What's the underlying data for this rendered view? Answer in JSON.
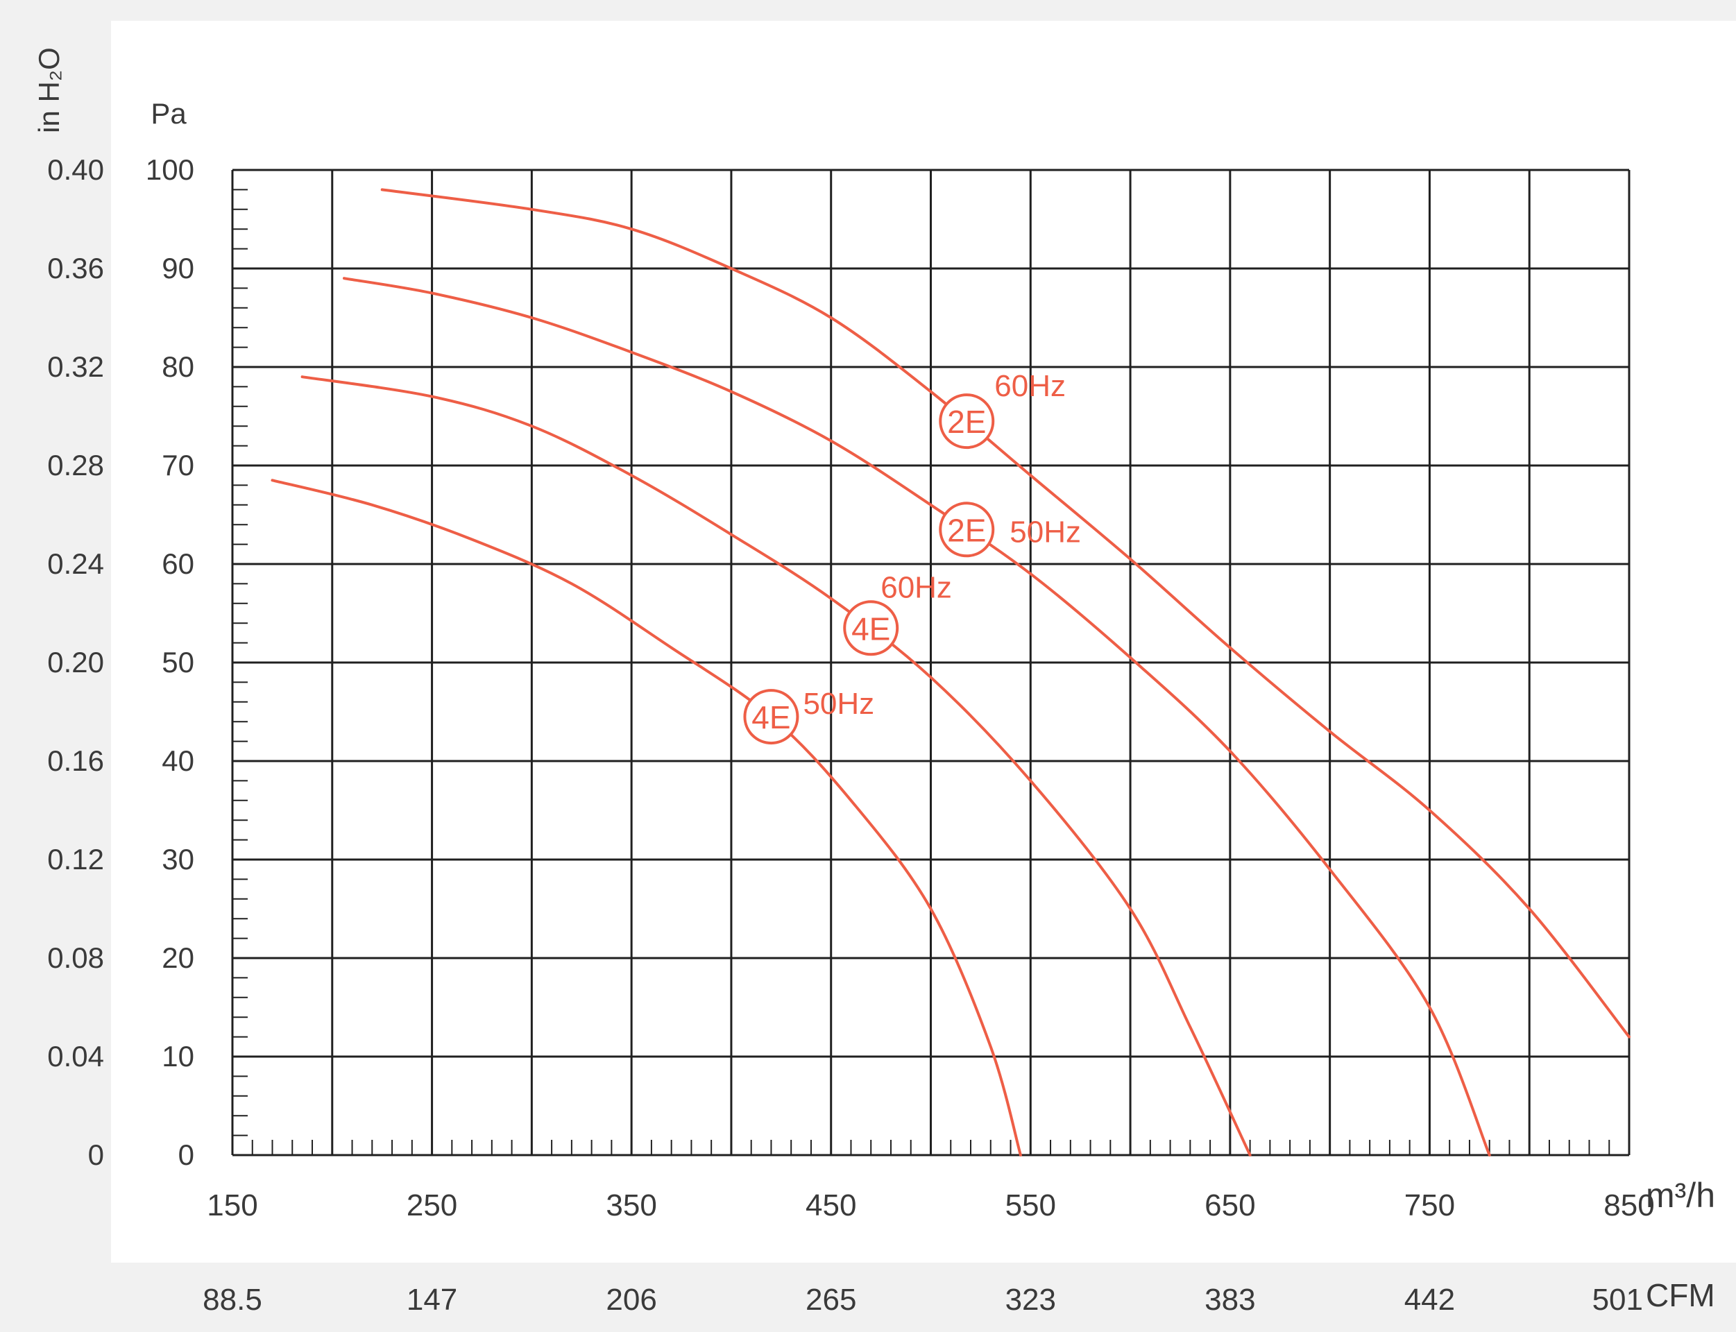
{
  "chart_data": {
    "type": "line",
    "title": "",
    "xlabel": "",
    "ylabel": "",
    "x_unit": "m³/h",
    "x2_unit": "CFM",
    "y_unit": "Pa",
    "y2_unit": "in H₂O",
    "xlim": [
      150,
      850
    ],
    "ylim": [
      0,
      100
    ],
    "x_ticks": [
      "150",
      "250",
      "350",
      "450",
      "550",
      "650",
      "750",
      "850"
    ],
    "x2_ticks": [
      "88.5",
      "147",
      "206",
      "265",
      "323",
      "383",
      "442",
      "501"
    ],
    "y_ticks": [
      "0",
      "10",
      "20",
      "30",
      "40",
      "50",
      "60",
      "70",
      "80",
      "90",
      "100"
    ],
    "y2_ticks": [
      "0",
      "0.04",
      "0.08",
      "0.12",
      "0.16",
      "0.20",
      "0.24",
      "0.28",
      "0.32",
      "0.36",
      "0.40"
    ],
    "grid": true,
    "series": [
      {
        "name": "2E 60Hz",
        "marker_text": "2E",
        "freq_text": "60Hz",
        "marker_at": [
          518,
          74.5
        ],
        "points": [
          [
            225,
            98
          ],
          [
            300,
            96
          ],
          [
            350,
            94
          ],
          [
            400,
            90
          ],
          [
            450,
            85
          ],
          [
            500,
            77.5
          ],
          [
            550,
            69
          ],
          [
            600,
            60.5
          ],
          [
            650,
            51.5
          ],
          [
            700,
            43
          ],
          [
            750,
            35
          ],
          [
            800,
            25
          ],
          [
            850,
            12
          ]
        ]
      },
      {
        "name": "2E 50Hz",
        "marker_text": "2E",
        "freq_text": "50Hz",
        "marker_at": [
          518,
          63.5
        ],
        "points": [
          [
            206,
            89
          ],
          [
            250,
            87.5
          ],
          [
            300,
            85
          ],
          [
            350,
            81.5
          ],
          [
            400,
            77.5
          ],
          [
            450,
            72.5
          ],
          [
            500,
            66
          ],
          [
            550,
            59
          ],
          [
            600,
            50.5
          ],
          [
            650,
            41
          ],
          [
            700,
            29
          ],
          [
            750,
            15
          ],
          [
            780,
            0
          ]
        ]
      },
      {
        "name": "4E 60Hz",
        "marker_text": "4E",
        "freq_text": "60Hz",
        "marker_at": [
          470,
          53.5
        ],
        "points": [
          [
            185,
            79
          ],
          [
            250,
            77
          ],
          [
            300,
            74
          ],
          [
            350,
            69
          ],
          [
            400,
            63
          ],
          [
            450,
            56.5
          ],
          [
            500,
            48.5
          ],
          [
            550,
            38
          ],
          [
            600,
            25
          ],
          [
            630,
            13
          ],
          [
            660,
            0
          ]
        ]
      },
      {
        "name": "4E 50Hz",
        "marker_text": "4E",
        "freq_text": "50Hz",
        "marker_at": [
          420,
          44.5
        ],
        "points": [
          [
            170,
            68.5
          ],
          [
            220,
            66
          ],
          [
            270,
            62.5
          ],
          [
            320,
            58
          ],
          [
            370,
            51.5
          ],
          [
            420,
            44.5
          ],
          [
            460,
            36
          ],
          [
            500,
            25
          ],
          [
            530,
            11
          ],
          [
            545,
            0
          ]
        ]
      }
    ],
    "colors": {
      "curve": "#ee5e46",
      "grid": "#202020",
      "text": "#3a3a3a",
      "background": "#f1f1f1"
    }
  }
}
